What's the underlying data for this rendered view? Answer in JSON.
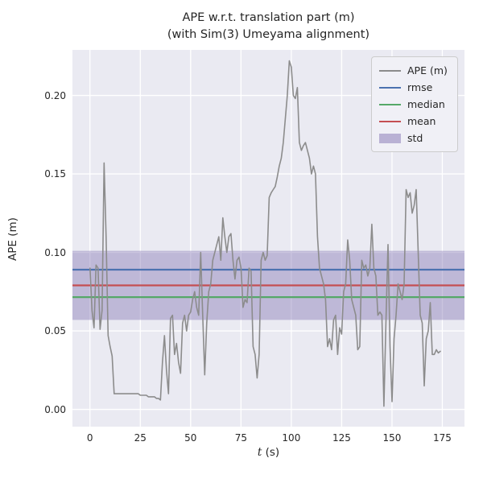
{
  "chart_data": {
    "type": "line",
    "title_line1": "APE w.r.t. translation part (m)",
    "title_line2": "(with Sim(3) Umeyama alignment)",
    "xlabel_var": "t",
    "xlabel_unit": " (s)",
    "ylabel": "APE (m)",
    "xlim": [
      -8.7,
      186
    ],
    "ylim": [
      -0.011,
      0.229
    ],
    "xticks": [
      0,
      25,
      50,
      75,
      100,
      125,
      150,
      175
    ],
    "yticks": [
      0.0,
      0.05,
      0.1,
      0.15,
      0.2
    ],
    "grid": true,
    "legend_position": "upper right",
    "stats": {
      "rmse": 0.089,
      "median": 0.0715,
      "mean": 0.079,
      "std": 0.022,
      "std_low": 0.057,
      "std_high": 0.101
    },
    "colors": {
      "ape": "#8c8c8c",
      "rmse": "#4c72b0",
      "median": "#55a868",
      "mean": "#c44e52",
      "std": "#8172b2",
      "axes_bg": "#eaeaf2",
      "grid": "#ffffff",
      "text": "#262626"
    },
    "legend_items": [
      {
        "label": "APE (m)",
        "type": "line",
        "color": "#8c8c8c"
      },
      {
        "label": "rmse",
        "type": "line",
        "color": "#4c72b0"
      },
      {
        "label": "median",
        "type": "line",
        "color": "#55a868"
      },
      {
        "label": "mean",
        "type": "line",
        "color": "#c44e52"
      },
      {
        "label": "std",
        "type": "patch",
        "color": "#8172b2"
      }
    ],
    "series": [
      {
        "name": "APE (m)",
        "x_start": 0,
        "x_step": 1,
        "y": [
          0.09,
          0.063,
          0.052,
          0.092,
          0.09,
          0.051,
          0.063,
          0.157,
          0.11,
          0.047,
          0.04,
          0.034,
          0.01,
          0.01,
          0.01,
          0.01,
          0.01,
          0.01,
          0.01,
          0.01,
          0.01,
          0.01,
          0.01,
          0.01,
          0.01,
          0.009,
          0.009,
          0.009,
          0.009,
          0.008,
          0.008,
          0.008,
          0.008,
          0.007,
          0.007,
          0.006,
          0.03,
          0.047,
          0.025,
          0.01,
          0.058,
          0.06,
          0.035,
          0.042,
          0.03,
          0.023,
          0.055,
          0.06,
          0.05,
          0.06,
          0.062,
          0.07,
          0.075,
          0.065,
          0.06,
          0.1,
          0.06,
          0.022,
          0.055,
          0.075,
          0.08,
          0.095,
          0.1,
          0.105,
          0.11,
          0.095,
          0.122,
          0.11,
          0.1,
          0.11,
          0.112,
          0.095,
          0.083,
          0.095,
          0.097,
          0.09,
          0.065,
          0.07,
          0.068,
          0.09,
          0.088,
          0.04,
          0.035,
          0.02,
          0.035,
          0.095,
          0.1,
          0.095,
          0.098,
          0.135,
          0.138,
          0.14,
          0.142,
          0.148,
          0.155,
          0.16,
          0.17,
          0.185,
          0.2,
          0.222,
          0.218,
          0.2,
          0.198,
          0.205,
          0.17,
          0.165,
          0.168,
          0.17,
          0.165,
          0.16,
          0.15,
          0.155,
          0.15,
          0.11,
          0.09,
          0.085,
          0.08,
          0.07,
          0.04,
          0.045,
          0.038,
          0.057,
          0.06,
          0.035,
          0.052,
          0.048,
          0.075,
          0.08,
          0.108,
          0.095,
          0.07,
          0.065,
          0.06,
          0.038,
          0.04,
          0.095,
          0.09,
          0.092,
          0.085,
          0.09,
          0.118,
          0.09,
          0.085,
          0.06,
          0.062,
          0.06,
          0.002,
          0.055,
          0.105,
          0.04,
          0.005,
          0.045,
          0.06,
          0.08,
          0.075,
          0.07,
          0.08,
          0.14,
          0.135,
          0.138,
          0.125,
          0.13,
          0.14,
          0.1,
          0.06,
          0.055,
          0.015,
          0.045,
          0.05,
          0.068,
          0.035,
          0.035,
          0.038,
          0.036,
          0.037
        ]
      }
    ]
  }
}
